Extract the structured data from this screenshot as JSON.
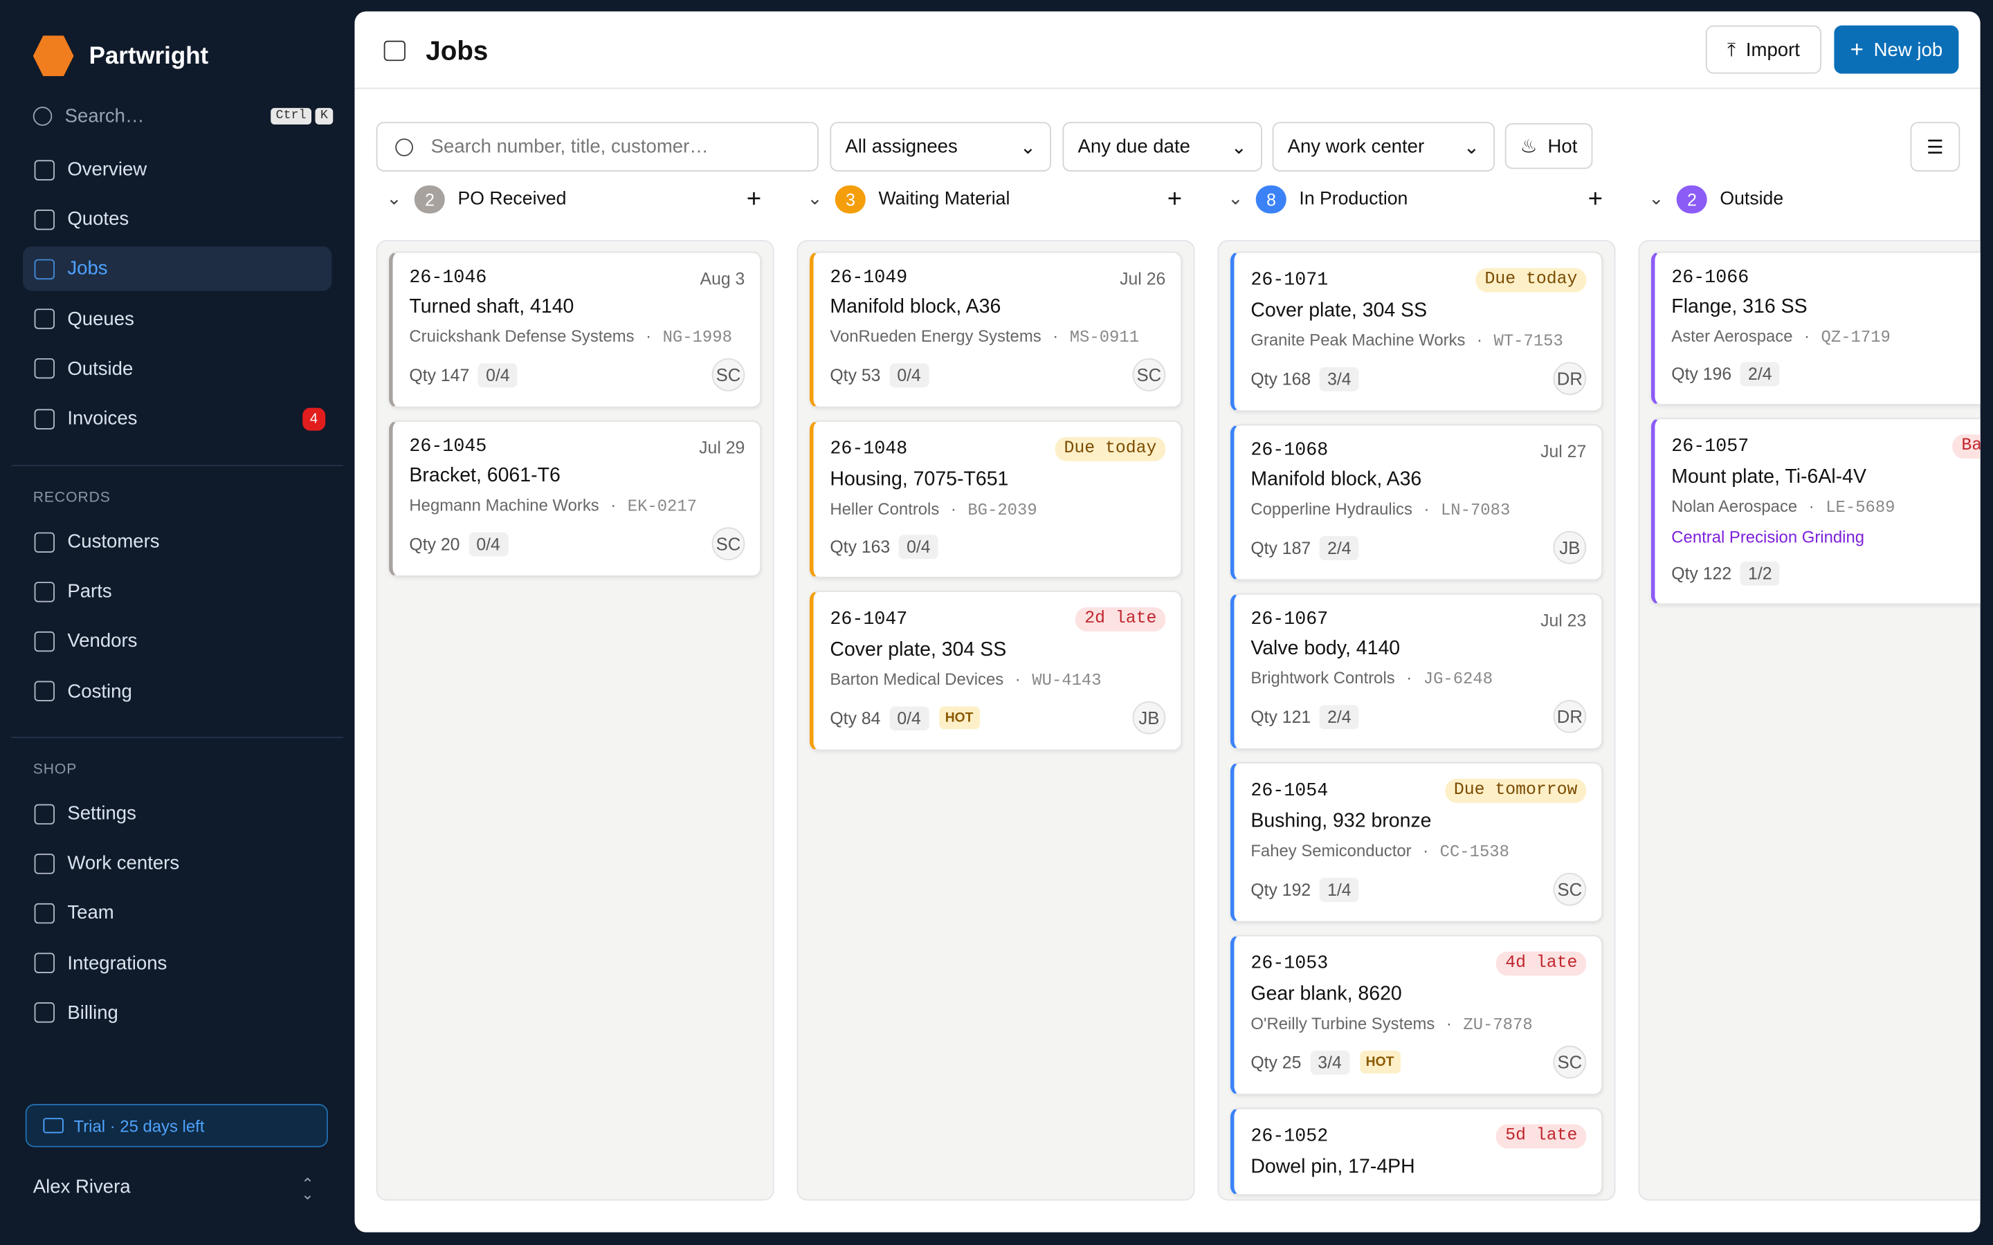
{
  "sidebar": {
    "brand": "Partwright",
    "search": "Search…",
    "shortcut": [
      "Ctrl",
      "K"
    ],
    "nav": [
      {
        "label": "Overview"
      },
      {
        "label": "Quotes"
      },
      {
        "label": "Jobs",
        "active": true
      },
      {
        "label": "Queues"
      },
      {
        "label": "Outside"
      },
      {
        "label": "Invoices",
        "badge": "4"
      }
    ],
    "sections": [
      {
        "title": "RECORDS",
        "items": [
          "Customers",
          "Parts",
          "Vendors",
          "Costing"
        ]
      },
      {
        "title": "SHOP",
        "items": [
          "Settings",
          "Work centers",
          "Team",
          "Integrations",
          "Billing"
        ]
      }
    ],
    "trial": "Trial · 25 days left",
    "user": "Alex Rivera"
  },
  "header": {
    "title": "Jobs",
    "import": "Import",
    "new": "New job"
  },
  "filters": {
    "search": "Search number, title, customer…",
    "assignees": "All assignees",
    "due": "Any due date",
    "center": "Any work center",
    "hot": "Hot"
  },
  "columns": [
    {
      "count": "2",
      "name": "PO Received",
      "color": "#a8a29e",
      "cards": [
        {
          "id": "26-1046",
          "date": "Aug 3",
          "title": "Turned shaft, 4140",
          "customer": "Cruickshank Defense Systems",
          "part": "NG-1998",
          "qty": "Qty 147",
          "progress": "0/4",
          "assignee": "SC"
        },
        {
          "id": "26-1045",
          "date": "Jul 29",
          "title": "Bracket, 6061-T6",
          "customer": "Hegmann Machine Works",
          "part": "EK-0217",
          "qty": "Qty 20",
          "progress": "0/4",
          "assignee": "SC"
        }
      ]
    },
    {
      "count": "3",
      "name": "Waiting Material",
      "color": "#f59e0b",
      "cards": [
        {
          "id": "26-1049",
          "date": "Jul 26",
          "title": "Manifold block, A36",
          "customer": "VonRueden Energy Systems",
          "part": "MS-0911",
          "qty": "Qty 53",
          "progress": "0/4",
          "assignee": "SC"
        },
        {
          "id": "26-1048",
          "badge": "Due today",
          "badgeKind": "warn",
          "title": "Housing, 7075-T651",
          "customer": "Heller Controls",
          "part": "BG-2039",
          "qty": "Qty 163",
          "progress": "0/4"
        },
        {
          "id": "26-1047",
          "badge": "2d late",
          "badgeKind": "late",
          "title": "Cover plate, 304 SS",
          "customer": "Barton Medical Devices",
          "part": "WU-4143",
          "qty": "Qty 84",
          "progress": "0/4",
          "hot": "HOT",
          "assignee": "JB"
        }
      ]
    },
    {
      "count": "8",
      "name": "In Production",
      "color": "#3b82f6",
      "cards": [
        {
          "id": "26-1071",
          "badge": "Due today",
          "badgeKind": "warn",
          "title": "Cover plate, 304 SS",
          "customer": "Granite Peak Machine Works",
          "part": "WT-7153",
          "qty": "Qty 168",
          "progress": "3/4",
          "assignee": "DR"
        },
        {
          "id": "26-1068",
          "date": "Jul 27",
          "title": "Manifold block, A36",
          "customer": "Copperline Hydraulics",
          "part": "LN-7083",
          "qty": "Qty 187",
          "progress": "2/4",
          "assignee": "JB"
        },
        {
          "id": "26-1067",
          "date": "Jul 23",
          "title": "Valve body, 4140",
          "customer": "Brightwork Controls",
          "part": "JG-6248",
          "qty": "Qty 121",
          "progress": "2/4",
          "assignee": "DR"
        },
        {
          "id": "26-1054",
          "badge": "Due tomorrow",
          "badgeKind": "warn",
          "title": "Bushing, 932 bronze",
          "customer": "Fahey Semiconductor",
          "part": "CC-1538",
          "qty": "Qty 192",
          "progress": "1/4",
          "assignee": "SC"
        },
        {
          "id": "26-1053",
          "badge": "4d late",
          "badgeKind": "late",
          "title": "Gear blank, 8620",
          "customer": "O'Reilly Turbine Systems",
          "part": "ZU-7878",
          "qty": "Qty 25",
          "progress": "3/4",
          "hot": "HOT",
          "assignee": "SC"
        },
        {
          "id": "26-1052",
          "badge": "5d late",
          "badgeKind": "late",
          "title": "Dowel pin, 17-4PH"
        }
      ]
    },
    {
      "count": "2",
      "name": "Outside",
      "color": "#8b5cf6",
      "cards": [
        {
          "id": "26-1066",
          "title": "Flange, 316 SS",
          "customer": "Aster Aerospace",
          "part": "QZ-1719",
          "qty": "Qty 196",
          "progress": "2/4"
        },
        {
          "id": "26-1057",
          "badge": "Back Jul",
          "badgeKind": "late",
          "title": "Mount plate, Ti-6Al-4V",
          "customer": "Nolan Aerospace",
          "part": "LE-5689",
          "vendor": "Central Precision Grinding",
          "qty": "Qty 122",
          "progress": "1/2"
        }
      ]
    }
  ]
}
